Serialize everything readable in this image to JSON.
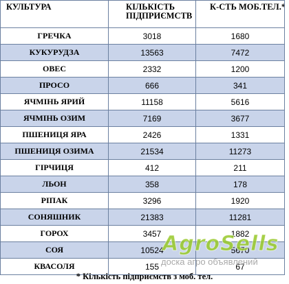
{
  "table": {
    "headers": [
      "КУЛЬТУРА",
      "КІЛЬКІСТЬ ПІДПРИЄМСТВ",
      "К-СТЬ МОБ.ТЕЛ.*"
    ],
    "rows": [
      {
        "crop": "ГРЕЧКА",
        "enterprises": "3018",
        "mobile": "1680"
      },
      {
        "crop": "КУКУРУДЗА",
        "enterprises": "13563",
        "mobile": "7472"
      },
      {
        "crop": "ОВЕС",
        "enterprises": "2332",
        "mobile": "1200"
      },
      {
        "crop": "ПРОСО",
        "enterprises": "666",
        "mobile": "341"
      },
      {
        "crop": "ЯЧМІНЬ ЯРИЙ",
        "enterprises": "11158",
        "mobile": "5616"
      },
      {
        "crop": "ЯЧМІНЬ ОЗИМ",
        "enterprises": "7169",
        "mobile": "3677"
      },
      {
        "crop": "ПШЕНИЦЯ ЯРА",
        "enterprises": "2426",
        "mobile": "1331"
      },
      {
        "crop": "ПШЕНИЦЯ ОЗИМА",
        "enterprises": "21534",
        "mobile": "11273"
      },
      {
        "crop": "ГІРЧИЦЯ",
        "enterprises": "412",
        "mobile": "211"
      },
      {
        "crop": "ЛЬОН",
        "enterprises": "358",
        "mobile": "178"
      },
      {
        "crop": "РІПАК",
        "enterprises": "3296",
        "mobile": "1920"
      },
      {
        "crop": "СОНЯШНИК",
        "enterprises": "21383",
        "mobile": "11281"
      },
      {
        "crop": "ГОРОХ",
        "enterprises": "3457",
        "mobile": "1882"
      },
      {
        "crop": "СОЯ",
        "enterprises": "10524",
        "mobile": "5670"
      },
      {
        "crop": "КВАСОЛЯ",
        "enterprises": "155",
        "mobile": "67"
      }
    ]
  },
  "footnote": "* Кількість підприємств з моб. тел.",
  "watermark": {
    "logo": "AgroSells",
    "tagline": "доска агро объявлений"
  },
  "colors": {
    "row_stripe": "#c9d4ea",
    "border": "#6a7f9f",
    "watermark_green": "#96c828"
  }
}
